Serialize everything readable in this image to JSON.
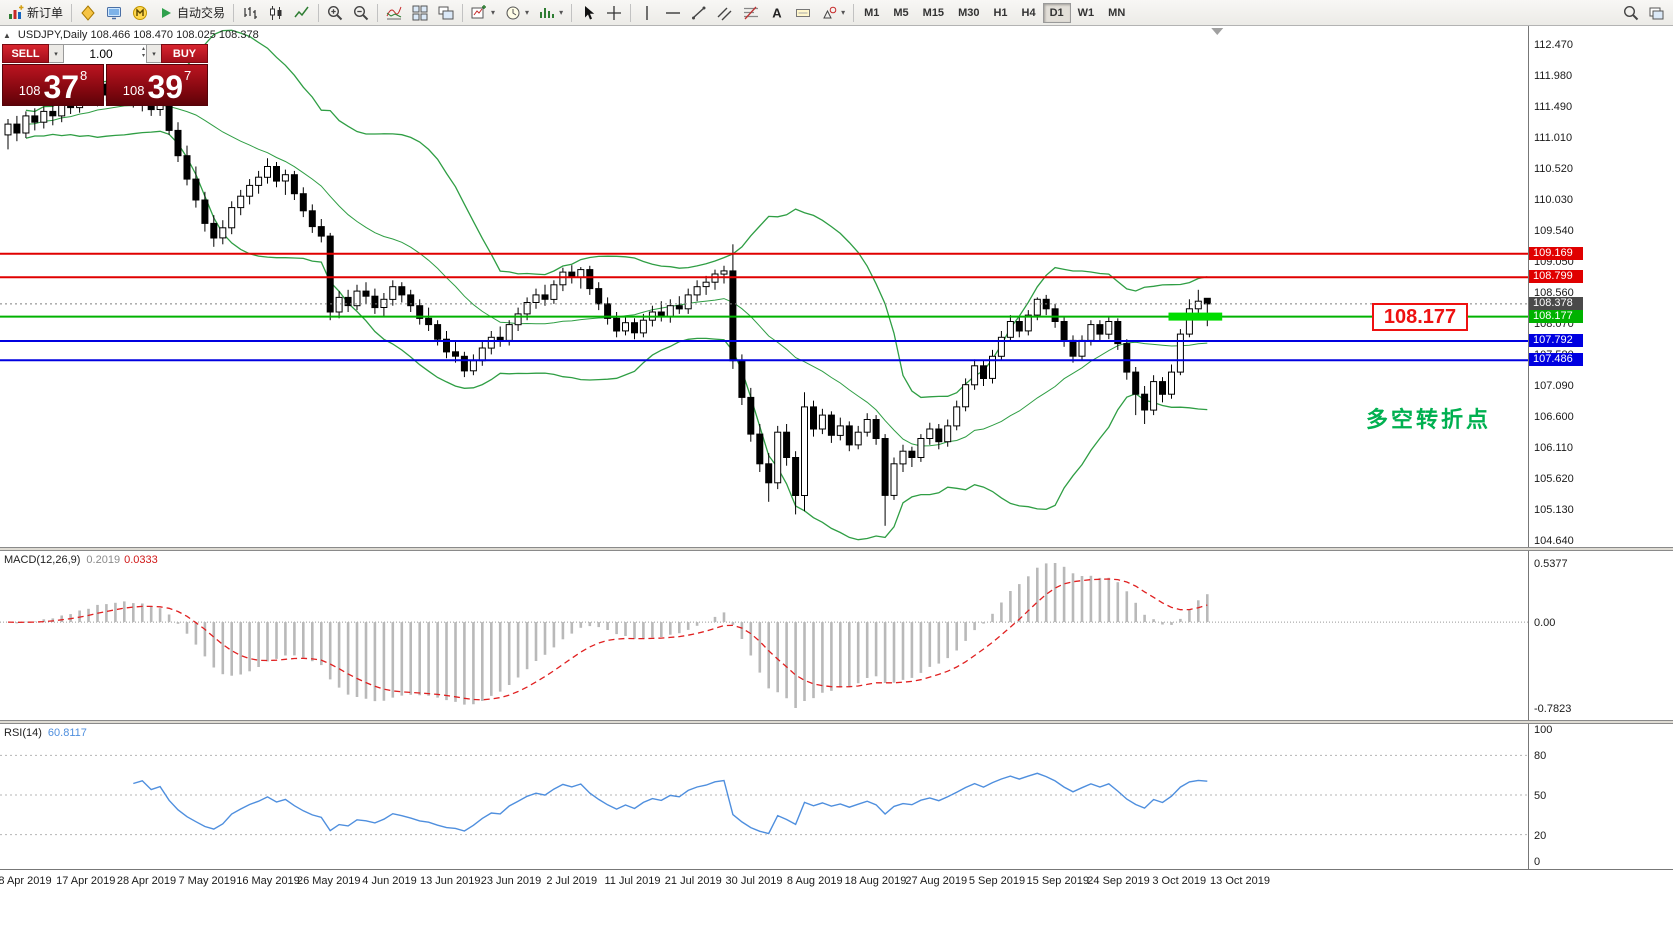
{
  "toolbar": {
    "new_order_label": "新订单",
    "autotrading_label": "自动交易",
    "timeframes": [
      "M1",
      "M5",
      "M15",
      "M30",
      "H1",
      "H4",
      "D1",
      "W1",
      "MN"
    ],
    "active_timeframe": "D1"
  },
  "chart": {
    "symbol_info": "USDJPY,Daily  108.466 108.470 108.025 108.378",
    "one_click": {
      "sell_label": "SELL",
      "buy_label": "BUY",
      "volume": "1.00",
      "sell_price_prefix": "108",
      "sell_price_big": "37",
      "sell_price_sup": "8",
      "buy_price_prefix": "108",
      "buy_price_big": "39",
      "buy_price_sup": "7"
    },
    "price_callout": "108.177",
    "note_text": "多空转折点"
  },
  "indicator_labels": {
    "macd_name": "MACD(12,26,9)",
    "macd_main_value": "0.2019",
    "macd_signal_value": "0.0333",
    "rsi_name": "RSI(14)",
    "rsi_value": "60.8117"
  },
  "chart_data": {
    "type": "candlestick",
    "symbol": "USDJPY",
    "period": "Daily",
    "ohlc": [
      [
        111.05,
        111.3,
        110.82,
        111.22
      ],
      [
        111.22,
        111.35,
        110.95,
        111.08
      ],
      [
        111.08,
        111.42,
        111.0,
        111.35
      ],
      [
        111.35,
        111.47,
        111.12,
        111.25
      ],
      [
        111.25,
        111.5,
        111.15,
        111.42
      ],
      [
        111.42,
        111.55,
        111.2,
        111.35
      ],
      [
        111.35,
        111.62,
        111.25,
        111.55
      ],
      [
        111.55,
        111.7,
        111.38,
        111.48
      ],
      [
        111.48,
        111.78,
        111.4,
        111.7
      ],
      [
        111.7,
        111.88,
        111.55,
        111.62
      ],
      [
        111.62,
        111.92,
        111.5,
        111.85
      ],
      [
        111.85,
        111.9,
        111.58,
        111.68
      ],
      [
        111.68,
        111.85,
        111.52,
        111.75
      ],
      [
        111.75,
        111.9,
        111.6,
        111.8
      ],
      [
        111.8,
        111.88,
        111.48,
        111.58
      ],
      [
        111.58,
        111.75,
        111.42,
        111.68
      ],
      [
        111.68,
        111.78,
        111.35,
        111.45
      ],
      [
        111.45,
        111.68,
        111.35,
        111.55
      ],
      [
        111.55,
        111.6,
        111.05,
        111.12
      ],
      [
        111.12,
        111.25,
        110.62,
        110.72
      ],
      [
        110.72,
        110.88,
        110.25,
        110.35
      ],
      [
        110.35,
        110.55,
        109.9,
        110.02
      ],
      [
        110.02,
        110.15,
        109.52,
        109.65
      ],
      [
        109.65,
        109.78,
        109.28,
        109.42
      ],
      [
        109.42,
        109.7,
        109.32,
        109.58
      ],
      [
        109.58,
        110.0,
        109.48,
        109.9
      ],
      [
        109.9,
        110.18,
        109.78,
        110.08
      ],
      [
        110.08,
        110.35,
        109.95,
        110.25
      ],
      [
        110.25,
        110.48,
        110.12,
        110.38
      ],
      [
        110.38,
        110.68,
        110.28,
        110.55
      ],
      [
        110.55,
        110.62,
        110.22,
        110.32
      ],
      [
        110.32,
        110.5,
        110.1,
        110.42
      ],
      [
        110.42,
        110.48,
        110.02,
        110.12
      ],
      [
        110.12,
        110.22,
        109.75,
        109.85
      ],
      [
        109.85,
        109.95,
        109.5,
        109.6
      ],
      [
        109.6,
        109.72,
        109.35,
        109.45
      ],
      [
        109.45,
        109.5,
        108.12,
        108.25
      ],
      [
        108.25,
        108.58,
        108.15,
        108.48
      ],
      [
        108.48,
        108.6,
        108.25,
        108.35
      ],
      [
        108.35,
        108.68,
        108.28,
        108.58
      ],
      [
        108.58,
        108.72,
        108.38,
        108.5
      ],
      [
        108.5,
        108.62,
        108.22,
        108.32
      ],
      [
        108.32,
        108.55,
        108.18,
        108.45
      ],
      [
        108.45,
        108.75,
        108.35,
        108.65
      ],
      [
        108.65,
        108.72,
        108.4,
        108.52
      ],
      [
        108.52,
        108.6,
        108.25,
        108.35
      ],
      [
        108.35,
        108.45,
        108.05,
        108.15
      ],
      [
        108.15,
        108.32,
        107.95,
        108.05
      ],
      [
        108.05,
        108.12,
        107.72,
        107.82
      ],
      [
        107.82,
        107.95,
        107.52,
        107.62
      ],
      [
        107.62,
        107.8,
        107.45,
        107.55
      ],
      [
        107.55,
        107.62,
        107.22,
        107.32
      ],
      [
        107.32,
        107.58,
        107.25,
        107.48
      ],
      [
        107.48,
        107.78,
        107.4,
        107.68
      ],
      [
        107.68,
        107.95,
        107.58,
        107.85
      ],
      [
        107.85,
        108.02,
        107.7,
        107.8
      ],
      [
        107.8,
        108.12,
        107.72,
        108.05
      ],
      [
        108.05,
        108.32,
        107.95,
        108.22
      ],
      [
        108.22,
        108.48,
        108.12,
        108.4
      ],
      [
        108.4,
        108.62,
        108.3,
        108.52
      ],
      [
        108.52,
        108.68,
        108.35,
        108.45
      ],
      [
        108.45,
        108.75,
        108.38,
        108.68
      ],
      [
        108.68,
        108.95,
        108.58,
        108.88
      ],
      [
        108.88,
        108.99,
        108.7,
        108.8
      ],
      [
        108.8,
        108.96,
        108.62,
        108.92
      ],
      [
        108.92,
        108.98,
        108.52,
        108.62
      ],
      [
        108.62,
        108.72,
        108.28,
        108.38
      ],
      [
        108.38,
        108.48,
        108.05,
        108.15
      ],
      [
        108.15,
        108.25,
        107.85,
        107.95
      ],
      [
        107.95,
        108.18,
        107.88,
        108.08
      ],
      [
        108.08,
        108.15,
        107.82,
        107.92
      ],
      [
        107.92,
        108.22,
        107.85,
        108.12
      ],
      [
        108.12,
        108.35,
        108.02,
        108.25
      ],
      [
        108.25,
        108.42,
        108.1,
        108.18
      ],
      [
        108.18,
        108.45,
        108.08,
        108.35
      ],
      [
        108.35,
        108.5,
        108.22,
        108.3
      ],
      [
        108.3,
        108.62,
        108.22,
        108.52
      ],
      [
        108.52,
        108.75,
        108.42,
        108.65
      ],
      [
        108.65,
        108.82,
        108.52,
        108.72
      ],
      [
        108.72,
        108.92,
        108.6,
        108.85
      ],
      [
        108.85,
        108.98,
        108.7,
        108.9
      ],
      [
        108.9,
        109.32,
        107.35,
        107.48
      ],
      [
        107.48,
        107.58,
        106.78,
        106.9
      ],
      [
        106.9,
        107.05,
        106.2,
        106.32
      ],
      [
        106.32,
        106.48,
        105.72,
        105.85
      ],
      [
        105.85,
        106.02,
        105.25,
        105.55
      ],
      [
        105.55,
        106.45,
        105.45,
        106.35
      ],
      [
        106.35,
        106.48,
        105.82,
        105.95
      ],
      [
        105.95,
        106.05,
        105.05,
        105.35
      ],
      [
        105.35,
        106.98,
        105.1,
        106.75
      ],
      [
        106.75,
        106.85,
        106.28,
        106.4
      ],
      [
        106.4,
        106.72,
        106.32,
        106.62
      ],
      [
        106.62,
        106.68,
        106.18,
        106.3
      ],
      [
        106.3,
        106.58,
        106.22,
        106.45
      ],
      [
        106.45,
        106.52,
        106.05,
        106.15
      ],
      [
        106.15,
        106.45,
        106.08,
        106.35
      ],
      [
        106.35,
        106.65,
        106.28,
        106.55
      ],
      [
        106.55,
        106.62,
        106.15,
        106.25
      ],
      [
        106.25,
        106.32,
        104.87,
        105.35
      ],
      [
        105.35,
        105.95,
        105.28,
        105.85
      ],
      [
        105.85,
        106.15,
        105.72,
        106.05
      ],
      [
        106.05,
        106.12,
        105.8,
        105.95
      ],
      [
        105.95,
        106.32,
        105.88,
        106.25
      ],
      [
        106.25,
        106.5,
        106.15,
        106.4
      ],
      [
        106.4,
        106.48,
        106.08,
        106.2
      ],
      [
        106.2,
        106.55,
        106.12,
        106.45
      ],
      [
        106.45,
        106.85,
        106.38,
        106.75
      ],
      [
        106.75,
        107.2,
        106.68,
        107.1
      ],
      [
        107.1,
        107.5,
        107.02,
        107.4
      ],
      [
        107.4,
        107.48,
        107.08,
        107.2
      ],
      [
        107.2,
        107.65,
        107.12,
        107.55
      ],
      [
        107.55,
        107.95,
        107.48,
        107.85
      ],
      [
        107.85,
        108.2,
        107.78,
        108.1
      ],
      [
        108.1,
        108.18,
        107.85,
        107.95
      ],
      [
        107.95,
        108.28,
        107.88,
        108.2
      ],
      [
        108.2,
        108.48,
        108.12,
        108.45
      ],
      [
        108.45,
        108.52,
        108.2,
        108.3
      ],
      [
        108.3,
        108.38,
        108.0,
        108.1
      ],
      [
        108.1,
        108.18,
        107.7,
        107.8
      ],
      [
        107.8,
        107.88,
        107.45,
        107.55
      ],
      [
        107.55,
        107.88,
        107.48,
        107.8
      ],
      [
        107.8,
        108.12,
        107.72,
        108.05
      ],
      [
        108.05,
        108.12,
        107.8,
        107.9
      ],
      [
        107.9,
        108.18,
        107.82,
        108.1
      ],
      [
        108.1,
        108.15,
        107.65,
        107.75
      ],
      [
        107.75,
        107.82,
        107.18,
        107.3
      ],
      [
        107.3,
        107.38,
        106.62,
        106.95
      ],
      [
        106.95,
        107.08,
        106.48,
        106.7
      ],
      [
        106.7,
        107.25,
        106.62,
        107.15
      ],
      [
        107.15,
        107.22,
        106.82,
        106.95
      ],
      [
        106.95,
        107.42,
        106.88,
        107.3
      ],
      [
        107.3,
        107.98,
        107.25,
        107.9
      ],
      [
        107.9,
        108.45,
        107.85,
        108.3
      ],
      [
        108.3,
        108.6,
        108.22,
        108.42
      ],
      [
        108.466,
        108.47,
        108.025,
        108.378
      ]
    ],
    "x_labels": [
      "8 Apr 2019",
      "17 Apr 2019",
      "28 Apr 2019",
      "7 May 2019",
      "16 May 2019",
      "26 May 2019",
      "4 Jun 2019",
      "13 Jun 2019",
      "23 Jun 2019",
      "2 Jul 2019",
      "11 Jul 2019",
      "21 Jul 2019",
      "30 Jul 2019",
      "8 Aug 2019",
      "18 Aug 2019",
      "27 Aug 2019",
      "5 Sep 2019",
      "15 Sep 2019",
      "24 Sep 2019",
      "3 Oct 2019",
      "13 Oct 2019"
    ],
    "y_axis_labels": [
      "112.470",
      "111.980",
      "111.490",
      "111.010",
      "110.520",
      "110.030",
      "109.540",
      "109.050",
      "108.560",
      "108.070",
      "107.580",
      "107.090",
      "106.600",
      "106.110",
      "105.620",
      "105.130",
      "104.640"
    ],
    "horizontal_lines": [
      {
        "price": 109.169,
        "color": "#e00000",
        "label": "109.169",
        "style": "solid"
      },
      {
        "price": 108.799,
        "color": "#e00000",
        "label": "108.799",
        "style": "solid"
      },
      {
        "price": 108.378,
        "color": "#808080",
        "label": "108.378",
        "style": "dotted",
        "role": "last-price"
      },
      {
        "price": 108.177,
        "color": "#00b200",
        "label": "108.177",
        "style": "solid"
      },
      {
        "price": 107.792,
        "color": "#0000e0",
        "label": "107.792",
        "style": "solid"
      },
      {
        "price": 107.486,
        "color": "#0000e0",
        "label": "107.486",
        "style": "solid"
      }
    ],
    "bollinger": {
      "period": 20,
      "deviation": 2,
      "color": "#2f9e44"
    },
    "highlight_segment": {
      "price": 108.177,
      "bar_start": 130,
      "bar_end": 136,
      "color": "#00dd00"
    },
    "macd": {
      "params": [
        12,
        26,
        9
      ],
      "scale_top": 0.5377,
      "scale_zero": 0.0,
      "scale_bottom": -0.7823,
      "scale_labels": [
        "0.5377",
        "0.00",
        "-0.7823"
      ],
      "histogram_color": "#b9b9b9",
      "signal_color": "#e02020"
    },
    "rsi": {
      "period": 14,
      "scale_labels": [
        "100",
        "80",
        "50",
        "20",
        "0"
      ],
      "levels": [
        80,
        50,
        20
      ],
      "color": "#4f8fde"
    }
  }
}
